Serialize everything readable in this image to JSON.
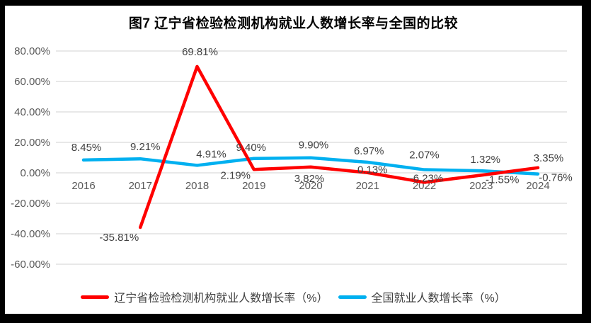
{
  "chart_data": {
    "type": "line",
    "title": "图7 辽宁省检验检测机构就业人数增长率与全国的比较",
    "categories": [
      "2016",
      "2017",
      "2018",
      "2019",
      "2020",
      "2021",
      "2022",
      "2023",
      "2024"
    ],
    "series": [
      {
        "name": "辽宁省检验检测机构就业人数增长率（%）",
        "color": "#FF0000",
        "values": [
          null,
          -35.81,
          69.81,
          2.19,
          3.82,
          0.13,
          -6.23,
          -1.55,
          3.35
        ]
      },
      {
        "name": "全国就业人数增长率（%）",
        "color": "#00B0F0",
        "values": [
          8.45,
          9.21,
          4.91,
          9.4,
          9.9,
          6.97,
          2.07,
          1.32,
          -0.76
        ]
      }
    ],
    "y_axis": {
      "min": -60,
      "max": 80,
      "step": 20,
      "ticks": [
        "80.00%",
        "60.00%",
        "40.00%",
        "20.00%",
        "0.00%",
        "-20.00%",
        "-40.00%",
        "-60.00%"
      ]
    },
    "x_axis": {
      "label_row": [
        "2016",
        "2017",
        "2018",
        "2019",
        "2020",
        "2021",
        "2022",
        "2023",
        "2024"
      ]
    },
    "grid": true,
    "data_labels": true,
    "legend_position": "bottom"
  },
  "styles": {
    "grid_color": "#D9D9D9",
    "axis_label_color": "#595959",
    "data_label_color": "#404040",
    "title_color": "#000000",
    "frame_color": "#000000"
  }
}
